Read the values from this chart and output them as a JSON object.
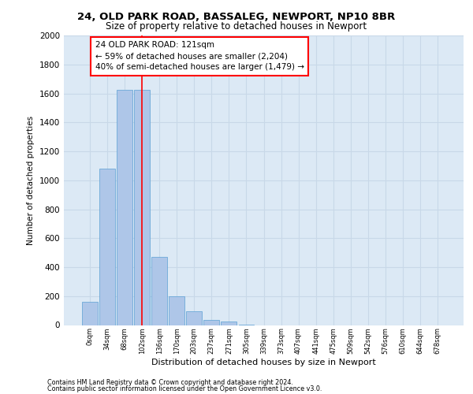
{
  "title_line1": "24, OLD PARK ROAD, BASSALEG, NEWPORT, NP10 8BR",
  "title_line2": "Size of property relative to detached houses in Newport",
  "xlabel": "Distribution of detached houses by size in Newport",
  "ylabel": "Number of detached properties",
  "footnote1": "Contains HM Land Registry data © Crown copyright and database right 2024.",
  "footnote2": "Contains public sector information licensed under the Open Government Licence v3.0.",
  "categories": [
    "0sqm",
    "34sqm",
    "68sqm",
    "102sqm",
    "136sqm",
    "170sqm",
    "203sqm",
    "237sqm",
    "271sqm",
    "305sqm",
    "339sqm",
    "373sqm",
    "407sqm",
    "441sqm",
    "475sqm",
    "509sqm",
    "542sqm",
    "576sqm",
    "610sqm",
    "644sqm",
    "678sqm"
  ],
  "values": [
    160,
    1080,
    1625,
    1625,
    470,
    200,
    95,
    35,
    22,
    5,
    0,
    0,
    0,
    0,
    0,
    0,
    0,
    0,
    0,
    0,
    0
  ],
  "bar_color": "#aec6e8",
  "bar_edge_color": "#5a9fd4",
  "property_line_color": "red",
  "annotation_text": "24 OLD PARK ROAD: 121sqm\n← 59% of detached houses are smaller (2,204)\n40% of semi-detached houses are larger (1,479) →",
  "annotation_box_color": "white",
  "annotation_box_edge_color": "red",
  "ylim": [
    0,
    2000
  ],
  "yticks": [
    0,
    200,
    400,
    600,
    800,
    1000,
    1200,
    1400,
    1600,
    1800,
    2000
  ],
  "grid_color": "#c8d8e8",
  "background_color": "#dce9f5",
  "fig_background": "#ffffff"
}
